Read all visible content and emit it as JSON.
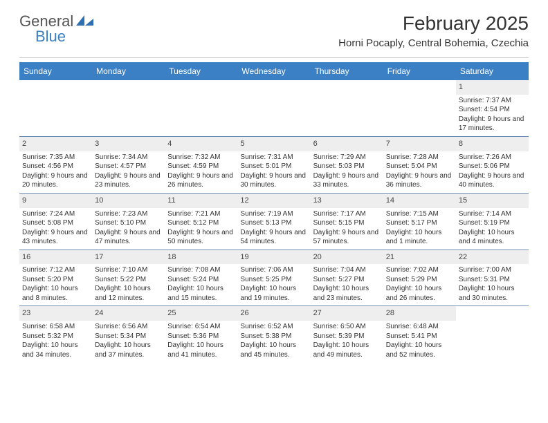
{
  "logo": {
    "word1": "General",
    "word2": "Blue"
  },
  "title": "February 2025",
  "location": "Horni Pocaply, Central Bohemia, Czechia",
  "header_bg": "#3b7fc4",
  "header_fg": "#ffffff",
  "daynum_bg": "#eeeeee",
  "week_border": "#6b8bb0",
  "text_color": "#333333",
  "font_size_day": 10,
  "daynames": [
    "Sunday",
    "Monday",
    "Tuesday",
    "Wednesday",
    "Thursday",
    "Friday",
    "Saturday"
  ],
  "weeks": [
    [
      {
        "n": "",
        "sr": "",
        "ss": "",
        "dl": ""
      },
      {
        "n": "",
        "sr": "",
        "ss": "",
        "dl": ""
      },
      {
        "n": "",
        "sr": "",
        "ss": "",
        "dl": ""
      },
      {
        "n": "",
        "sr": "",
        "ss": "",
        "dl": ""
      },
      {
        "n": "",
        "sr": "",
        "ss": "",
        "dl": ""
      },
      {
        "n": "",
        "sr": "",
        "ss": "",
        "dl": ""
      },
      {
        "n": "1",
        "sr": "Sunrise: 7:37 AM",
        "ss": "Sunset: 4:54 PM",
        "dl": "Daylight: 9 hours and 17 minutes."
      }
    ],
    [
      {
        "n": "2",
        "sr": "Sunrise: 7:35 AM",
        "ss": "Sunset: 4:56 PM",
        "dl": "Daylight: 9 hours and 20 minutes."
      },
      {
        "n": "3",
        "sr": "Sunrise: 7:34 AM",
        "ss": "Sunset: 4:57 PM",
        "dl": "Daylight: 9 hours and 23 minutes."
      },
      {
        "n": "4",
        "sr": "Sunrise: 7:32 AM",
        "ss": "Sunset: 4:59 PM",
        "dl": "Daylight: 9 hours and 26 minutes."
      },
      {
        "n": "5",
        "sr": "Sunrise: 7:31 AM",
        "ss": "Sunset: 5:01 PM",
        "dl": "Daylight: 9 hours and 30 minutes."
      },
      {
        "n": "6",
        "sr": "Sunrise: 7:29 AM",
        "ss": "Sunset: 5:03 PM",
        "dl": "Daylight: 9 hours and 33 minutes."
      },
      {
        "n": "7",
        "sr": "Sunrise: 7:28 AM",
        "ss": "Sunset: 5:04 PM",
        "dl": "Daylight: 9 hours and 36 minutes."
      },
      {
        "n": "8",
        "sr": "Sunrise: 7:26 AM",
        "ss": "Sunset: 5:06 PM",
        "dl": "Daylight: 9 hours and 40 minutes."
      }
    ],
    [
      {
        "n": "9",
        "sr": "Sunrise: 7:24 AM",
        "ss": "Sunset: 5:08 PM",
        "dl": "Daylight: 9 hours and 43 minutes."
      },
      {
        "n": "10",
        "sr": "Sunrise: 7:23 AM",
        "ss": "Sunset: 5:10 PM",
        "dl": "Daylight: 9 hours and 47 minutes."
      },
      {
        "n": "11",
        "sr": "Sunrise: 7:21 AM",
        "ss": "Sunset: 5:12 PM",
        "dl": "Daylight: 9 hours and 50 minutes."
      },
      {
        "n": "12",
        "sr": "Sunrise: 7:19 AM",
        "ss": "Sunset: 5:13 PM",
        "dl": "Daylight: 9 hours and 54 minutes."
      },
      {
        "n": "13",
        "sr": "Sunrise: 7:17 AM",
        "ss": "Sunset: 5:15 PM",
        "dl": "Daylight: 9 hours and 57 minutes."
      },
      {
        "n": "14",
        "sr": "Sunrise: 7:15 AM",
        "ss": "Sunset: 5:17 PM",
        "dl": "Daylight: 10 hours and 1 minute."
      },
      {
        "n": "15",
        "sr": "Sunrise: 7:14 AM",
        "ss": "Sunset: 5:19 PM",
        "dl": "Daylight: 10 hours and 4 minutes."
      }
    ],
    [
      {
        "n": "16",
        "sr": "Sunrise: 7:12 AM",
        "ss": "Sunset: 5:20 PM",
        "dl": "Daylight: 10 hours and 8 minutes."
      },
      {
        "n": "17",
        "sr": "Sunrise: 7:10 AM",
        "ss": "Sunset: 5:22 PM",
        "dl": "Daylight: 10 hours and 12 minutes."
      },
      {
        "n": "18",
        "sr": "Sunrise: 7:08 AM",
        "ss": "Sunset: 5:24 PM",
        "dl": "Daylight: 10 hours and 15 minutes."
      },
      {
        "n": "19",
        "sr": "Sunrise: 7:06 AM",
        "ss": "Sunset: 5:25 PM",
        "dl": "Daylight: 10 hours and 19 minutes."
      },
      {
        "n": "20",
        "sr": "Sunrise: 7:04 AM",
        "ss": "Sunset: 5:27 PM",
        "dl": "Daylight: 10 hours and 23 minutes."
      },
      {
        "n": "21",
        "sr": "Sunrise: 7:02 AM",
        "ss": "Sunset: 5:29 PM",
        "dl": "Daylight: 10 hours and 26 minutes."
      },
      {
        "n": "22",
        "sr": "Sunrise: 7:00 AM",
        "ss": "Sunset: 5:31 PM",
        "dl": "Daylight: 10 hours and 30 minutes."
      }
    ],
    [
      {
        "n": "23",
        "sr": "Sunrise: 6:58 AM",
        "ss": "Sunset: 5:32 PM",
        "dl": "Daylight: 10 hours and 34 minutes."
      },
      {
        "n": "24",
        "sr": "Sunrise: 6:56 AM",
        "ss": "Sunset: 5:34 PM",
        "dl": "Daylight: 10 hours and 37 minutes."
      },
      {
        "n": "25",
        "sr": "Sunrise: 6:54 AM",
        "ss": "Sunset: 5:36 PM",
        "dl": "Daylight: 10 hours and 41 minutes."
      },
      {
        "n": "26",
        "sr": "Sunrise: 6:52 AM",
        "ss": "Sunset: 5:38 PM",
        "dl": "Daylight: 10 hours and 45 minutes."
      },
      {
        "n": "27",
        "sr": "Sunrise: 6:50 AM",
        "ss": "Sunset: 5:39 PM",
        "dl": "Daylight: 10 hours and 49 minutes."
      },
      {
        "n": "28",
        "sr": "Sunrise: 6:48 AM",
        "ss": "Sunset: 5:41 PM",
        "dl": "Daylight: 10 hours and 52 minutes."
      },
      {
        "n": "",
        "sr": "",
        "ss": "",
        "dl": ""
      }
    ]
  ]
}
